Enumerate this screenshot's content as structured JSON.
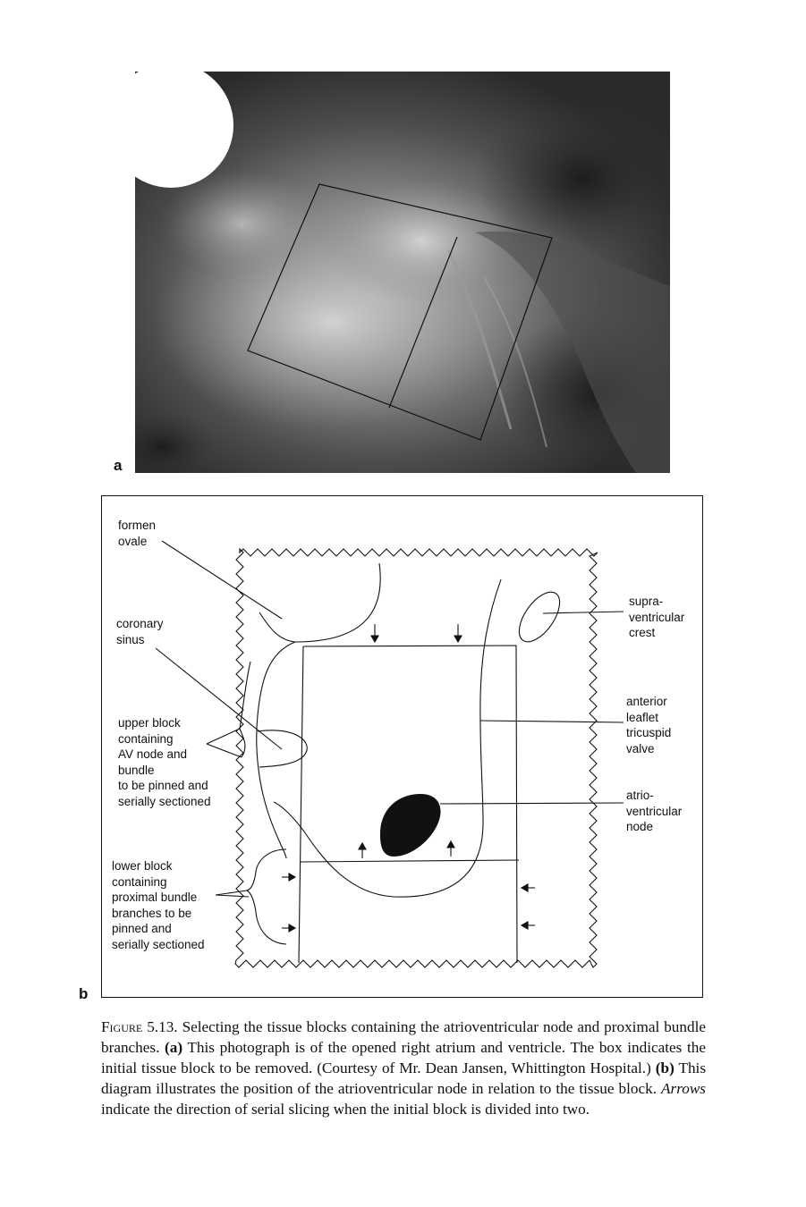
{
  "figure": {
    "panel_a_letter": "a",
    "panel_b_letter": "b"
  },
  "diagram": {
    "labels": {
      "foramen_ovale": "formen\novale",
      "coronary_sinus": "coronary\nsinus",
      "upper_block": "upper block\ncontaining\nAV node and\nbundle\nto be pinned and\nserially sectioned",
      "lower_block": "lower block\ncontaining\nproximal bundle\nbranches to be\npinned and\nserially sectioned",
      "supraventricular_crest": "supra-\nventricular\ncrest",
      "anterior_leaflet": "anterior\nleaflet\ntricuspid\nvalve",
      "av_node": "atrio-\nventricular\nnode"
    }
  },
  "caption": {
    "figure_label": "Figure 5.13.",
    "text_1": " Selecting the tissue blocks containing the atrioventricular node and proximal bundle branches. ",
    "a_marker": "(a)",
    "text_2": " This photograph is of the opened right atrium and ventricle. The box indicates the initial tissue block to be removed. (Courtesy of Mr. Dean Jansen, Whittington Hospital.) ",
    "b_marker": "(b)",
    "text_3": " This diagram illustrates the position of the atrioventricular node in relation to the tissue block. ",
    "arrows_word": "Arrows",
    "text_4": " indicate the direction of serial slicing when the initial block is divided into two."
  }
}
